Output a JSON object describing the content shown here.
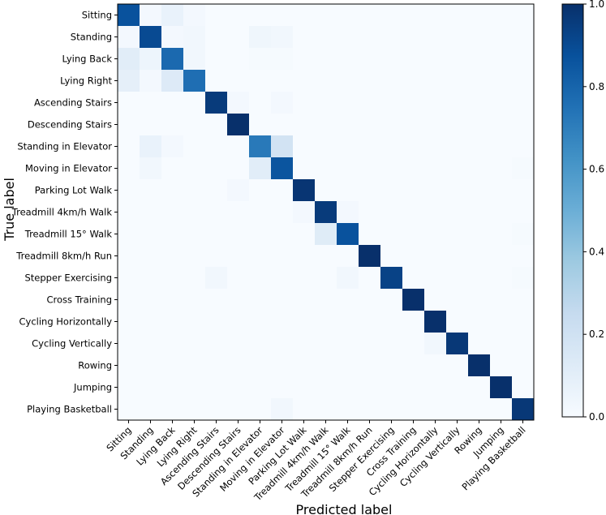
{
  "chart_data": {
    "type": "heatmap",
    "title": "",
    "xlabel": "Predicted label",
    "ylabel": "True label",
    "labels": [
      "Sitting",
      "Standing",
      "Lying Back",
      "Lying Right",
      "Ascending Stairs",
      "Descending Stairs",
      "Standing in Elevator",
      "Moving in Elevator",
      "Parking Lot Walk",
      "Treadmill 4km/h Walk",
      "Treadmill 15° Walk",
      "Treadmill 8km/h Run",
      "Stepper Exercising",
      "Cross Training",
      "Cycling Horizontally",
      "Cycling Vertically",
      "Rowing",
      "Jumping",
      "Playing Basketball"
    ],
    "values": [
      [
        0.87,
        0.02,
        0.07,
        0.02,
        0,
        0,
        0,
        0,
        0,
        0,
        0,
        0,
        0,
        0,
        0,
        0,
        0,
        0,
        0
      ],
      [
        0.02,
        0.9,
        0.02,
        0.03,
        0,
        0,
        0.04,
        0.03,
        0,
        0,
        0,
        0,
        0,
        0,
        0,
        0,
        0,
        0,
        0
      ],
      [
        0.11,
        0.05,
        0.78,
        0.03,
        0,
        0,
        0.01,
        0.01,
        0,
        0,
        0,
        0,
        0,
        0,
        0,
        0,
        0,
        0,
        0
      ],
      [
        0.09,
        0.02,
        0.13,
        0.76,
        0,
        0,
        0,
        0,
        0,
        0,
        0,
        0,
        0,
        0,
        0,
        0,
        0,
        0,
        0
      ],
      [
        0,
        0,
        0,
        0,
        0.96,
        0.02,
        0,
        0.02,
        0,
        0,
        0,
        0,
        0,
        0,
        0,
        0,
        0,
        0,
        0
      ],
      [
        0,
        0,
        0,
        0,
        0,
        1.0,
        0,
        0,
        0,
        0,
        0,
        0,
        0,
        0,
        0,
        0,
        0,
        0,
        0
      ],
      [
        0,
        0.07,
        0.02,
        0,
        0,
        0,
        0.72,
        0.19,
        0,
        0,
        0,
        0,
        0,
        0,
        0,
        0,
        0,
        0,
        0
      ],
      [
        0,
        0.03,
        0,
        0,
        0,
        0,
        0.11,
        0.86,
        0,
        0,
        0,
        0,
        0,
        0,
        0,
        0,
        0,
        0,
        0.01
      ],
      [
        0,
        0,
        0,
        0,
        0,
        0.02,
        0,
        0,
        0.98,
        0,
        0,
        0,
        0,
        0,
        0,
        0,
        0,
        0,
        0
      ],
      [
        0,
        0,
        0,
        0,
        0,
        0,
        0,
        0,
        0.02,
        0.96,
        0.02,
        0,
        0,
        0,
        0,
        0,
        0,
        0,
        0
      ],
      [
        0,
        0,
        0,
        0,
        0,
        0,
        0,
        0,
        0,
        0.12,
        0.87,
        0,
        0,
        0,
        0,
        0,
        0,
        0,
        0.01
      ],
      [
        0,
        0,
        0,
        0,
        0,
        0,
        0,
        0,
        0,
        0,
        0,
        1.0,
        0,
        0,
        0,
        0,
        0,
        0,
        0
      ],
      [
        0,
        0,
        0,
        0,
        0.03,
        0,
        0,
        0,
        0,
        0,
        0.03,
        0,
        0.93,
        0,
        0,
        0,
        0,
        0,
        0.01
      ],
      [
        0,
        0,
        0,
        0,
        0,
        0,
        0,
        0,
        0,
        0,
        0,
        0,
        0,
        1.0,
        0,
        0,
        0,
        0,
        0
      ],
      [
        0,
        0,
        0,
        0,
        0,
        0,
        0,
        0,
        0,
        0,
        0,
        0,
        0,
        0,
        1.0,
        0,
        0,
        0,
        0
      ],
      [
        0,
        0,
        0,
        0,
        0,
        0,
        0,
        0,
        0,
        0,
        0,
        0,
        0,
        0,
        0.03,
        0.97,
        0,
        0,
        0
      ],
      [
        0,
        0,
        0,
        0,
        0,
        0,
        0,
        0,
        0,
        0,
        0,
        0,
        0,
        0,
        0,
        0,
        1.0,
        0,
        0
      ],
      [
        0,
        0,
        0,
        0,
        0,
        0,
        0,
        0,
        0,
        0,
        0,
        0,
        0,
        0,
        0,
        0,
        0,
        1.0,
        0
      ],
      [
        0,
        0,
        0,
        0,
        0,
        0,
        0,
        0.03,
        0,
        0,
        0,
        0,
        0,
        0,
        0,
        0,
        0,
        0,
        0.97
      ]
    ],
    "colorbar": {
      "range": [
        0.0,
        1.0
      ],
      "ticks": [
        "0.0",
        "0.2",
        "0.4",
        "0.6",
        "0.8",
        "1.0"
      ],
      "colormap": "Blues"
    }
  }
}
